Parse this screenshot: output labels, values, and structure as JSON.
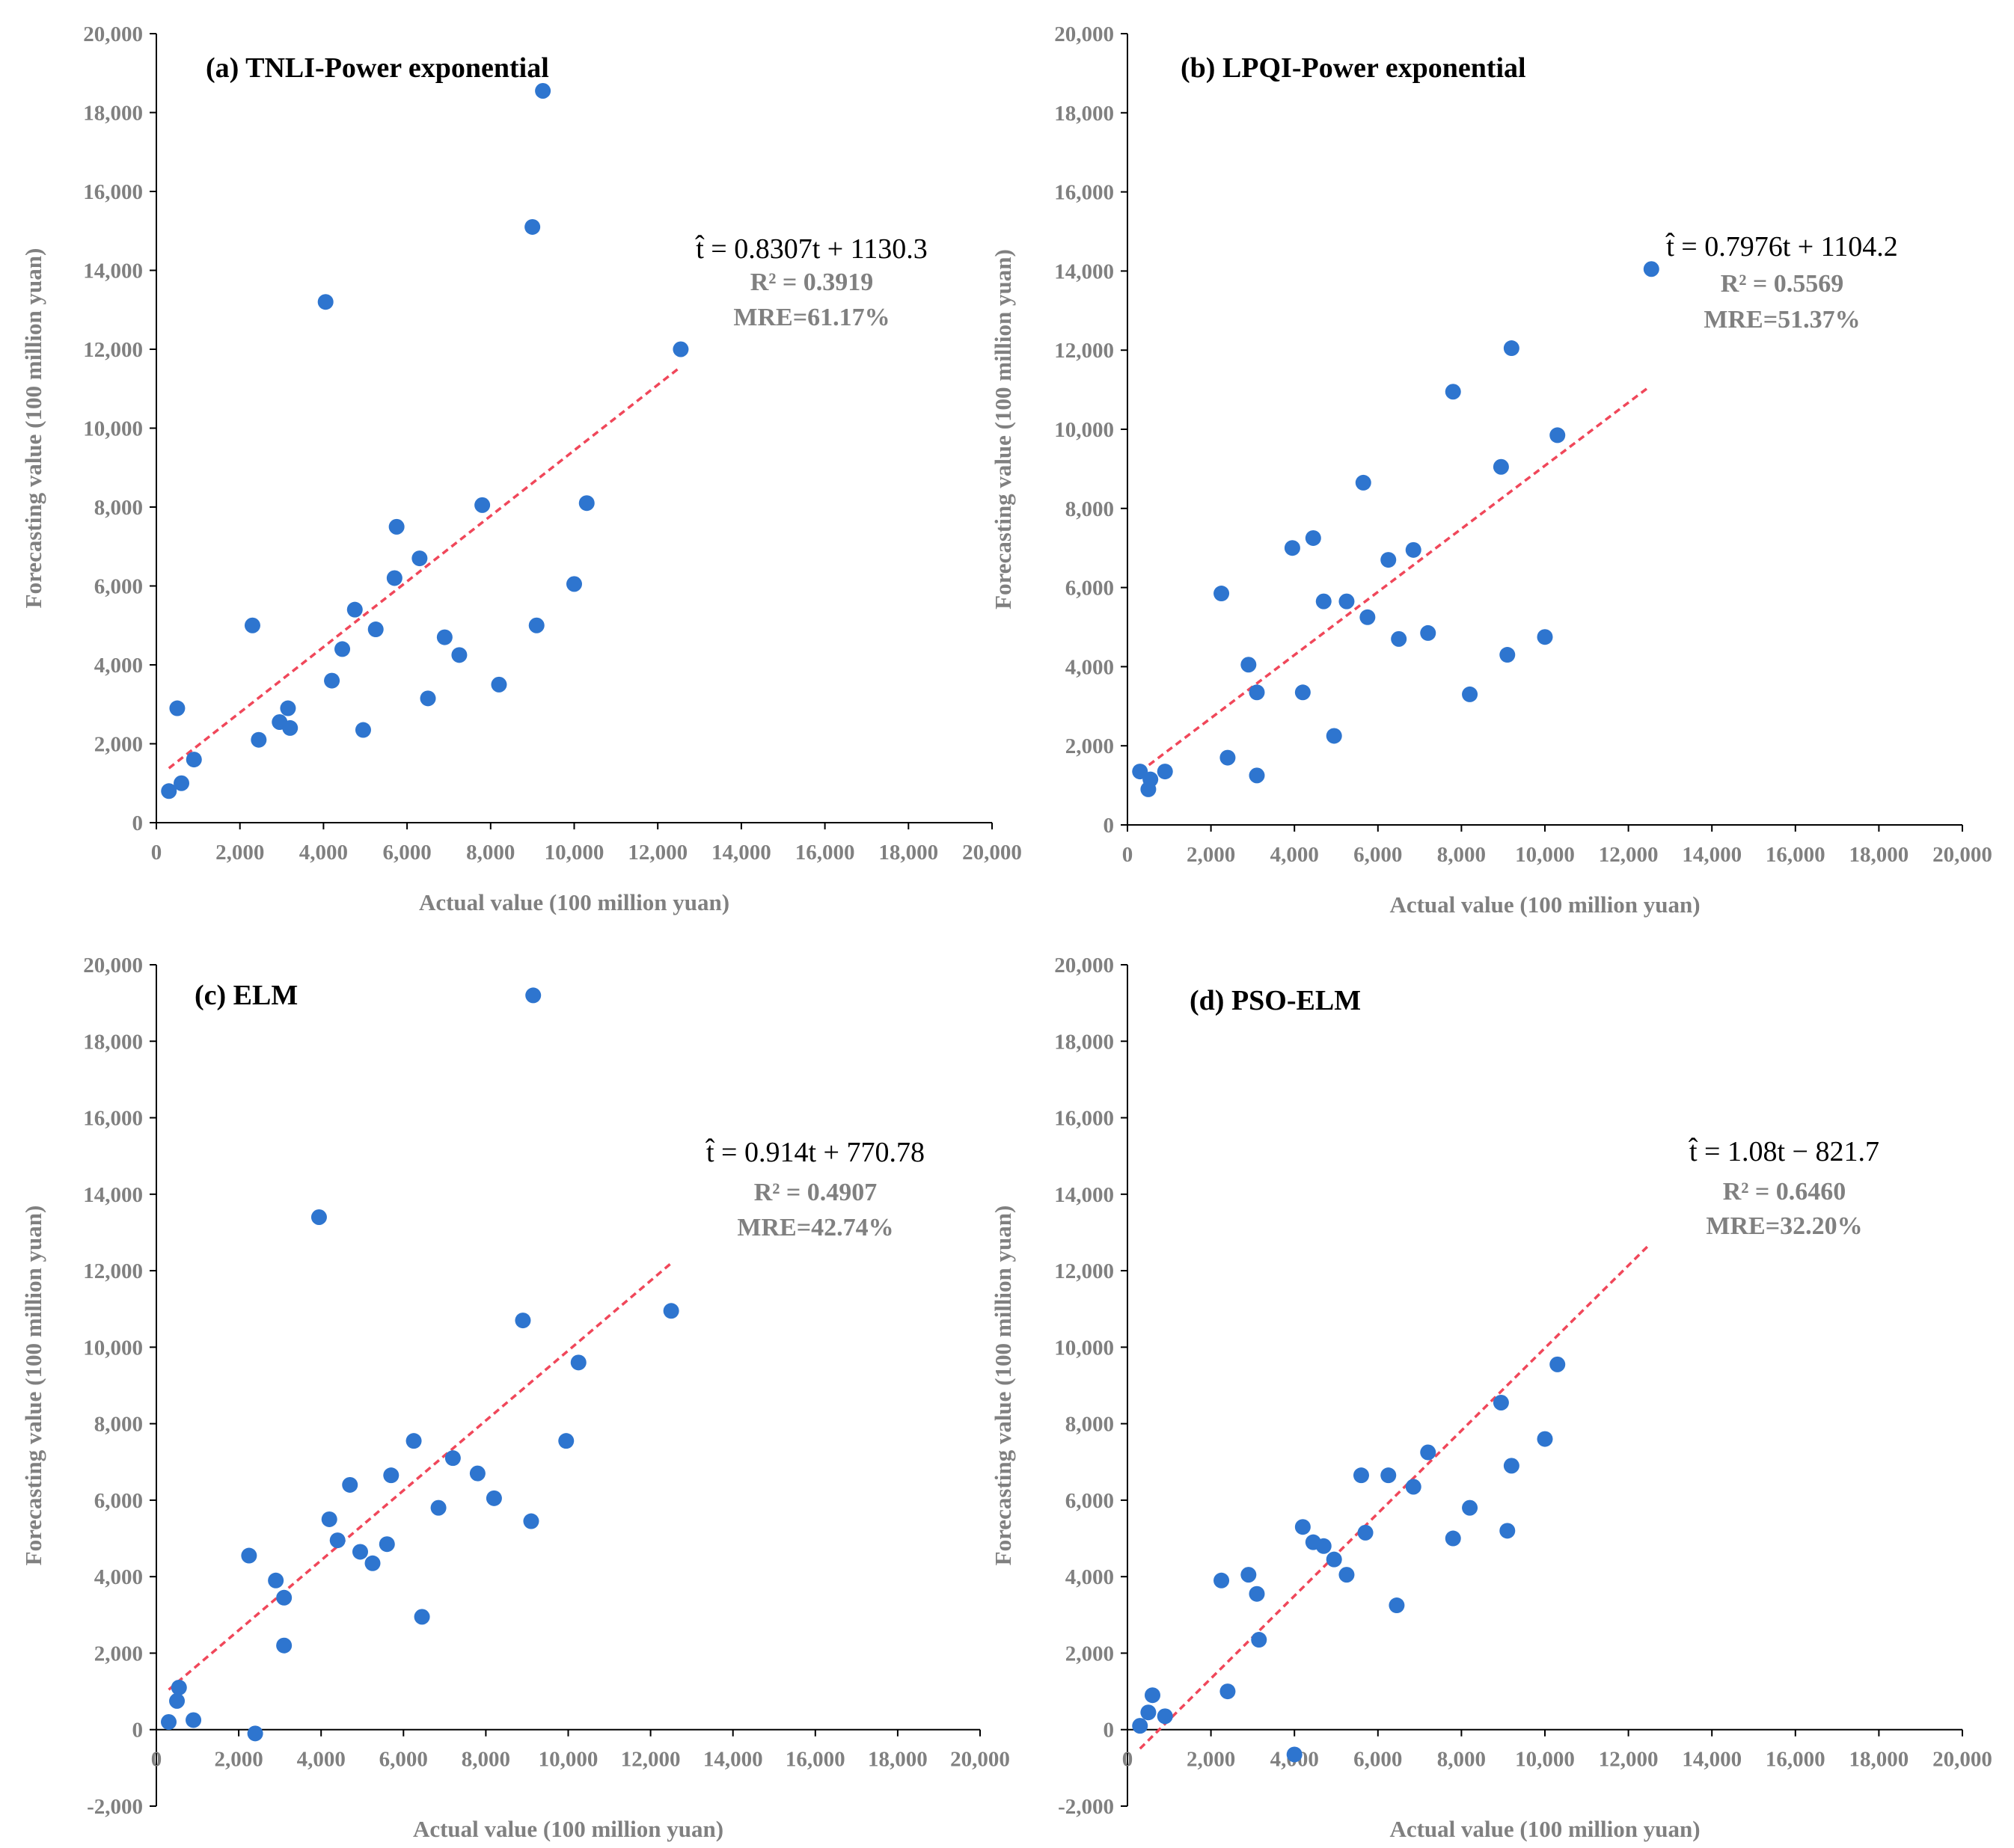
{
  "chart_data": [
    {
      "type": "scatter",
      "title": "(a) TNLI-Power exponential",
      "xlabel": "Actual value (100 million yuan)",
      "ylabel": "Forecasting value (100 million yuan)",
      "xlim": [
        0,
        20000
      ],
      "ylim": [
        0,
        20000
      ],
      "xticks": [
        "0",
        "2,000",
        "4,000",
        "6,000",
        "8,000",
        "10,000",
        "12,000",
        "14,000",
        "16,000",
        "18,000",
        "20,000"
      ],
      "yticks": [
        "0",
        "2,000",
        "4,000",
        "6,000",
        "8,000",
        "10,000",
        "12,000",
        "14,000",
        "16,000",
        "18,000",
        "20,000"
      ],
      "equation": "t̂ = 0.8307t + 1130.3",
      "r2": "R² = 0.3919",
      "mre": "MRE=61.17%",
      "trend": {
        "slope": 0.8307,
        "intercept": 1130.3,
        "x_range": [
          300,
          12500
        ]
      },
      "colors": {
        "point": "#2e75cf",
        "trend": "#f0475a",
        "axis": "#000000",
        "text": "#808080"
      },
      "points": [
        [
          300,
          800
        ],
        [
          500,
          2900
        ],
        [
          600,
          1000
        ],
        [
          900,
          1600
        ],
        [
          2300,
          5000
        ],
        [
          2450,
          2100
        ],
        [
          2950,
          2550
        ],
        [
          3150,
          2900
        ],
        [
          3200,
          2400
        ],
        [
          4050,
          13200
        ],
        [
          4200,
          3600
        ],
        [
          4450,
          4400
        ],
        [
          4750,
          5400
        ],
        [
          4950,
          2350
        ],
        [
          5250,
          4900
        ],
        [
          5700,
          6200
        ],
        [
          5750,
          7500
        ],
        [
          6300,
          6700
        ],
        [
          6500,
          3150
        ],
        [
          6900,
          4700
        ],
        [
          7250,
          4250
        ],
        [
          7800,
          8050
        ],
        [
          8200,
          3500
        ],
        [
          9000,
          15100
        ],
        [
          9100,
          5000
        ],
        [
          9250,
          18550
        ],
        [
          10000,
          6050
        ],
        [
          10300,
          8100
        ],
        [
          12550,
          12000
        ]
      ]
    },
    {
      "type": "scatter",
      "title": "(b) LPQI-Power exponential",
      "xlabel": "Actual value (100 million yuan)",
      "ylabel": "Forecasting value (100 million yuan)",
      "xlim": [
        0,
        20000
      ],
      "ylim": [
        0,
        20000
      ],
      "xticks": [
        "0",
        "2,000",
        "4,000",
        "6,000",
        "8,000",
        "10,000",
        "12,000",
        "14,000",
        "16,000",
        "18,000",
        "20,000"
      ],
      "yticks": [
        "0",
        "2,000",
        "4,000",
        "6,000",
        "8,000",
        "10,000",
        "12,000",
        "14,000",
        "16,000",
        "18,000",
        "20,000"
      ],
      "equation": "t̂ = 0.7976t + 1104.2",
      "r2": "R² = 0.5569",
      "mre": "MRE=51.37%",
      "trend": {
        "slope": 0.7976,
        "intercept": 1104.2,
        "x_range": [
          300,
          12500
        ]
      },
      "colors": {
        "point": "#2e75cf",
        "trend": "#f0475a",
        "axis": "#000000",
        "text": "#808080"
      },
      "points": [
        [
          300,
          1350
        ],
        [
          500,
          900
        ],
        [
          550,
          1150
        ],
        [
          900,
          1350
        ],
        [
          2250,
          5850
        ],
        [
          2400,
          1700
        ],
        [
          2900,
          4050
        ],
        [
          3100,
          3350
        ],
        [
          3100,
          1250
        ],
        [
          3950,
          7000
        ],
        [
          4200,
          3350
        ],
        [
          4450,
          7250
        ],
        [
          4700,
          5650
        ],
        [
          4950,
          2250
        ],
        [
          5250,
          5650
        ],
        [
          5650,
          8650
        ],
        [
          5750,
          5250
        ],
        [
          6250,
          6700
        ],
        [
          6500,
          4700
        ],
        [
          6850,
          6950
        ],
        [
          7200,
          4850
        ],
        [
          7800,
          10950
        ],
        [
          8200,
          3300
        ],
        [
          8950,
          9050
        ],
        [
          9100,
          4300
        ],
        [
          9200,
          12050
        ],
        [
          10000,
          4750
        ],
        [
          10300,
          9850
        ],
        [
          12550,
          14050
        ]
      ]
    },
    {
      "type": "scatter",
      "title": "(c) ELM",
      "xlabel": "Actual value (100 million yuan)",
      "ylabel": "Forecasting value (100 million yuan)",
      "xlim": [
        0,
        20000
      ],
      "ylim": [
        -2000,
        20000
      ],
      "xticks": [
        "0",
        "2,000",
        "4,000",
        "6,000",
        "8,000",
        "10,000",
        "12,000",
        "14,000",
        "16,000",
        "18,000",
        "20,000"
      ],
      "yticks": [
        "-2,000",
        "0",
        "2,000",
        "4,000",
        "6,000",
        "8,000",
        "10,000",
        "12,000",
        "14,000",
        "16,000",
        "18,000",
        "20,000"
      ],
      "equation": "t̂ = 0.914t + 770.78",
      "r2": "R² = 0.4907",
      "mre": "MRE=42.74%",
      "trend": {
        "slope": 0.914,
        "intercept": 770.78,
        "x_range": [
          300,
          12500
        ]
      },
      "colors": {
        "point": "#2e75cf",
        "trend": "#f0475a",
        "axis": "#000000",
        "text": "#808080"
      },
      "points": [
        [
          300,
          200
        ],
        [
          500,
          750
        ],
        [
          550,
          1100
        ],
        [
          900,
          250
        ],
        [
          2250,
          4550
        ],
        [
          2400,
          -100
        ],
        [
          2900,
          3900
        ],
        [
          3100,
          3450
        ],
        [
          3100,
          2200
        ],
        [
          3950,
          13400
        ],
        [
          4200,
          5500
        ],
        [
          4400,
          4950
        ],
        [
          4700,
          6400
        ],
        [
          4950,
          4650
        ],
        [
          5250,
          4350
        ],
        [
          5600,
          4850
        ],
        [
          5700,
          6650
        ],
        [
          6250,
          7550
        ],
        [
          6450,
          2950
        ],
        [
          6850,
          5800
        ],
        [
          7200,
          7100
        ],
        [
          7800,
          6700
        ],
        [
          8200,
          6050
        ],
        [
          8900,
          10700
        ],
        [
          9100,
          5450
        ],
        [
          9150,
          19200
        ],
        [
          9950,
          7550
        ],
        [
          10250,
          9600
        ],
        [
          12500,
          10950
        ]
      ]
    },
    {
      "type": "scatter",
      "title": "(d) PSO-ELM",
      "xlabel": "Actual value (100 million yuan)",
      "ylabel": "Forecasting value (100 million yuan)",
      "xlim": [
        0,
        20000
      ],
      "ylim": [
        -2000,
        20000
      ],
      "xticks": [
        "0",
        "2,000",
        "4,000",
        "6,000",
        "8,000",
        "10,000",
        "12,000",
        "14,000",
        "16,000",
        "18,000",
        "20,000"
      ],
      "yticks": [
        "-2,000",
        "0",
        "2,000",
        "4,000",
        "6,000",
        "8,000",
        "10,000",
        "12,000",
        "14,000",
        "16,000",
        "18,000",
        "20,000"
      ],
      "equation": "t̂ = 1.08t − 821.7",
      "r2": "R² = 0.6460",
      "mre": "MRE=32.20%",
      "trend": {
        "slope": 1.08,
        "intercept": -821.7,
        "x_range": [
          300,
          12500
        ]
      },
      "colors": {
        "point": "#2e75cf",
        "trend": "#f0475a",
        "axis": "#000000",
        "text": "#808080"
      },
      "points": [
        [
          300,
          100
        ],
        [
          500,
          450
        ],
        [
          600,
          900
        ],
        [
          900,
          350
        ],
        [
          2250,
          3900
        ],
        [
          2400,
          1000
        ],
        [
          2900,
          4050
        ],
        [
          3100,
          3550
        ],
        [
          3150,
          2350
        ],
        [
          4000,
          -650
        ],
        [
          4200,
          5300
        ],
        [
          4450,
          4900
        ],
        [
          4700,
          4800
        ],
        [
          4950,
          4450
        ],
        [
          5250,
          4050
        ],
        [
          5600,
          6650
        ],
        [
          5700,
          5150
        ],
        [
          6250,
          6650
        ],
        [
          6450,
          3250
        ],
        [
          6850,
          6350
        ],
        [
          7200,
          7250
        ],
        [
          7800,
          5000
        ],
        [
          8200,
          5800
        ],
        [
          8950,
          8550
        ],
        [
          9100,
          5200
        ],
        [
          9200,
          6900
        ],
        [
          10000,
          7600
        ],
        [
          10300,
          9550
        ]
      ]
    }
  ]
}
